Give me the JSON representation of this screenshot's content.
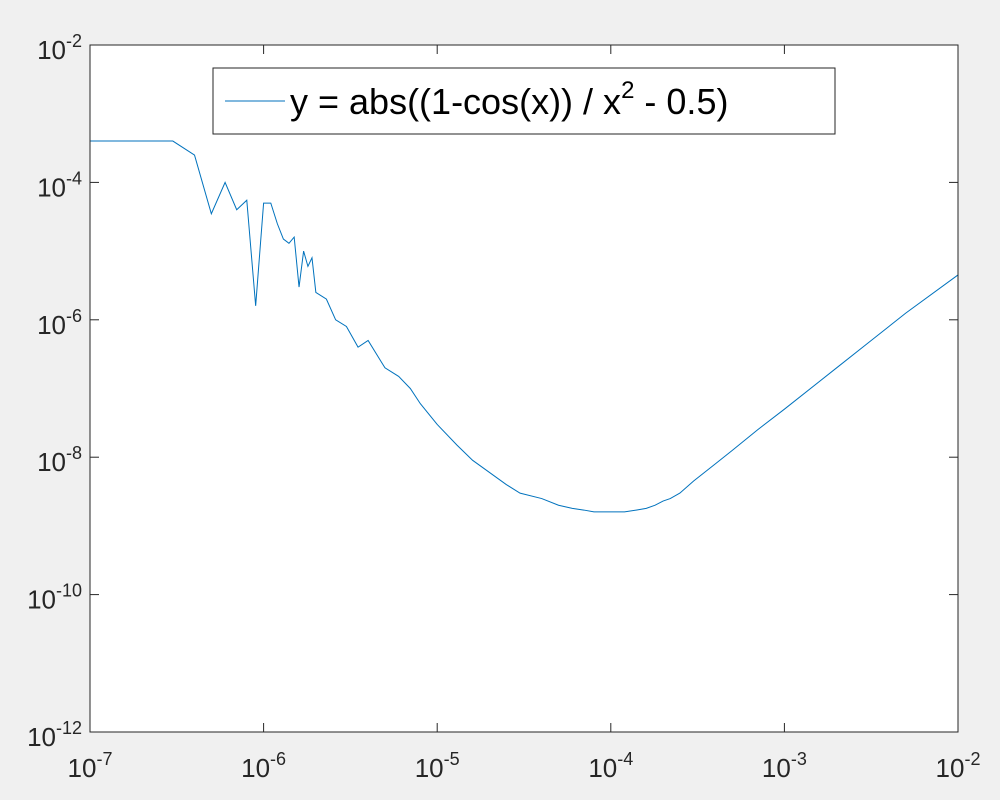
{
  "chart_data": {
    "type": "line",
    "title": "",
    "xlabel": "",
    "ylabel": "",
    "x_scale": "log",
    "y_scale": "log",
    "xlim": [
      1e-07,
      0.01
    ],
    "ylim": [
      1e-12,
      0.01
    ],
    "grid": false,
    "legend_location": "top-right",
    "line_color": "#0072bd",
    "x_ticks": [
      {
        "base": "10",
        "exp": "-7"
      },
      {
        "base": "10",
        "exp": "-6"
      },
      {
        "base": "10",
        "exp": "-5"
      },
      {
        "base": "10",
        "exp": "-4"
      },
      {
        "base": "10",
        "exp": "-3"
      },
      {
        "base": "10",
        "exp": "-2"
      }
    ],
    "y_ticks": [
      {
        "base": "10",
        "exp": "-12"
      },
      {
        "base": "10",
        "exp": "-10"
      },
      {
        "base": "10",
        "exp": "-8"
      },
      {
        "base": "10",
        "exp": "-6"
      },
      {
        "base": "10",
        "exp": "-4"
      },
      {
        "base": "10",
        "exp": "-2"
      }
    ],
    "series": [
      {
        "legend": {
          "prefix": "y = abs((1-cos(x)) / x",
          "exp": "2",
          "suffix": " - 0.5)"
        },
        "x": [
          1e-07,
          2e-07,
          3e-07,
          4e-07,
          5e-07,
          6e-07,
          7e-07,
          8e-07,
          9e-07,
          1e-06,
          1.1e-06,
          1.2e-06,
          1.3e-06,
          1.4e-06,
          1.5e-06,
          1.6e-06,
          1.7e-06,
          1.8e-06,
          1.9e-06,
          2e-06,
          2.3e-06,
          2.6e-06,
          3e-06,
          3.5e-06,
          4e-06,
          5e-06,
          6e-06,
          7e-06,
          8e-06,
          1e-05,
          1.3e-05,
          1.6e-05,
          2e-05,
          2.5e-05,
          3e-05,
          4e-05,
          5e-05,
          6e-05,
          7e-05,
          8e-05,
          0.0001,
          0.00012,
          0.00014,
          0.00016,
          0.00018,
          0.0002,
          0.00022,
          0.00025,
          0.0003,
          0.0004,
          0.0005,
          0.0007,
          0.001,
          0.002,
          0.003,
          0.005,
          0.01
        ],
        "y": [
          0.0004,
          0.0004,
          0.0004,
          0.00025,
          3.5e-05,
          0.0001,
          4e-05,
          5.5e-05,
          1.6e-06,
          5e-05,
          5e-05,
          2.5e-05,
          1.5e-05,
          1.3e-05,
          1.6e-05,
          3e-06,
          1e-05,
          6e-06,
          8e-06,
          2.5e-06,
          2e-06,
          1e-06,
          8e-07,
          4e-07,
          5e-07,
          2e-07,
          1.5e-07,
          1e-07,
          6e-08,
          3e-08,
          1.5e-08,
          9e-09,
          6e-09,
          4e-09,
          3e-09,
          2.5e-09,
          2e-09,
          1.8e-09,
          1.7e-09,
          1.6e-09,
          1.6e-09,
          1.6e-09,
          1.7e-09,
          1.8e-09,
          2e-09,
          2.3e-09,
          2.5e-09,
          3e-09,
          4.5e-09,
          8e-09,
          1.25e-08,
          2.5e-08,
          5e-08,
          2e-07,
          4.5e-07,
          1.25e-06,
          4.5e-06
        ]
      }
    ]
  }
}
